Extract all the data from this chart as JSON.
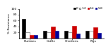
{
  "categories": [
    "Humans",
    "Cattle",
    "Chickens",
    "Pigs"
  ],
  "series": [
    {
      "label": "0",
      "color": "#000000",
      "edgecolor": "#000000",
      "values": [
        65,
        25,
        25,
        25
      ]
    },
    {
      "label": "1-2",
      "color": "#ffffff",
      "edgecolor": "#555555",
      "values": [
        20,
        20,
        20,
        25
      ]
    },
    {
      "label": "3-4",
      "color": "#cc0000",
      "edgecolor": "#cc0000",
      "values": [
        10,
        40,
        42,
        38
      ]
    },
    {
      "label": "5-8",
      "color": "#000099",
      "edgecolor": "#000099",
      "values": [
        10,
        25,
        15,
        18
      ]
    }
  ],
  "ylabel": "% Resistance",
  "ylim": [
    0,
    100
  ],
  "yticks": [
    20,
    40,
    60,
    80,
    100
  ],
  "bar_width": 0.17,
  "group_centers": [
    0.45,
    1.35,
    2.25,
    3.15
  ],
  "figsize": [
    1.5,
    0.7
  ],
  "dpi": 100
}
